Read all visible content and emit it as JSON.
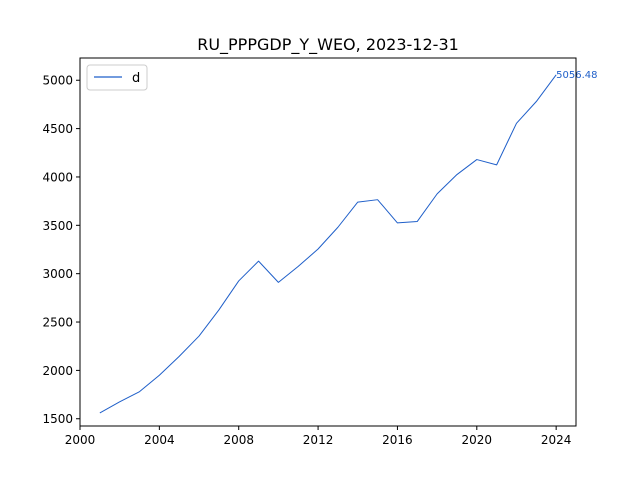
{
  "chart_data": {
    "type": "line",
    "title": "RU_PPPGDP_Y_WEO, 2023-12-31",
    "xlabel": "",
    "ylabel": "",
    "xlim": [
      2000,
      2025
    ],
    "ylim": [
      1425,
      5230
    ],
    "x_ticks": [
      2000,
      2004,
      2008,
      2012,
      2016,
      2020,
      2024
    ],
    "y_ticks": [
      1500,
      2000,
      2500,
      3000,
      3500,
      4000,
      4500,
      5000
    ],
    "grid": false,
    "legend": {
      "position": "top-left",
      "entries": [
        "d"
      ]
    },
    "series": [
      {
        "name": "d",
        "color": "#1f5fc9",
        "x": [
          2001,
          2002,
          2003,
          2004,
          2005,
          2006,
          2007,
          2008,
          2009,
          2010,
          2011,
          2012,
          2013,
          2014,
          2015,
          2016,
          2017,
          2018,
          2019,
          2020,
          2021,
          2022,
          2023,
          2024
        ],
        "values": [
          1560,
          1675,
          1780,
          1950,
          2145,
          2355,
          2625,
          2925,
          3130,
          2910,
          3075,
          3255,
          3480,
          3740,
          3765,
          3525,
          3540,
          3825,
          4025,
          4180,
          4125,
          4555,
          4780,
          5056.48
        ]
      }
    ],
    "annotations": [
      {
        "text": "5056.48",
        "x": 2024,
        "y": 5056.48,
        "color": "#1f5fc9"
      }
    ]
  }
}
